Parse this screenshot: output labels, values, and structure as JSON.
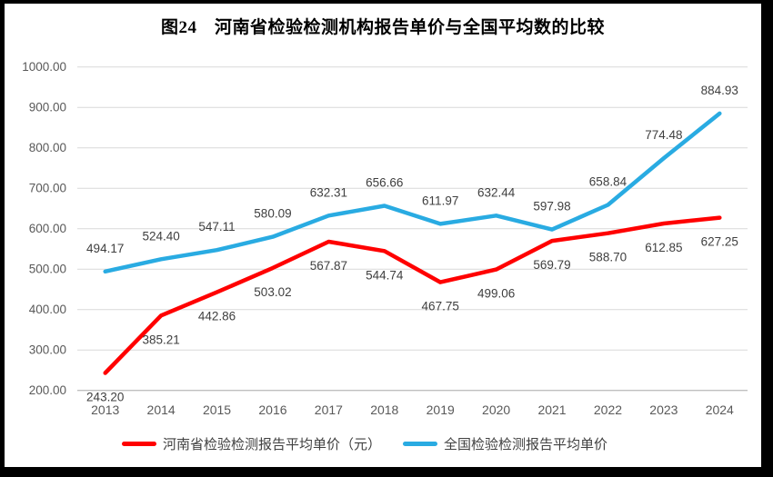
{
  "title": "图24　河南省检验检测机构报告单价与全国平均数的比较",
  "chart_data": {
    "type": "line",
    "categories": [
      "2013",
      "2014",
      "2015",
      "2016",
      "2017",
      "2018",
      "2019",
      "2020",
      "2021",
      "2022",
      "2023",
      "2024"
    ],
    "series": [
      {
        "name": "河南省检验检测报告平均单价（元）",
        "color": "#FF0000",
        "values": [
          243.2,
          385.21,
          442.86,
          503.02,
          567.87,
          544.74,
          467.75,
          499.06,
          569.79,
          588.7,
          612.85,
          627.25
        ],
        "label_position": "below"
      },
      {
        "name": "全国检验检测报告平均单价",
        "color": "#29ABE2",
        "values": [
          494.17,
          524.4,
          547.11,
          580.09,
          632.31,
          656.66,
          611.97,
          632.44,
          597.98,
          658.84,
          774.48,
          884.93
        ],
        "label_position": "above"
      }
    ],
    "ylim": [
      200,
      1000
    ],
    "yticks": [
      200,
      300,
      400,
      500,
      600,
      700,
      800,
      900,
      1000
    ],
    "ytick_decimals": 2,
    "data_label_decimals": 2,
    "grid": true,
    "legend_position": "bottom"
  },
  "colors": {
    "axis_text": "#595959",
    "data_label_text": "#3F3F3F",
    "gridline": "#D9D9D9",
    "axis_line": "#BFBFBF",
    "title_text": "#000000",
    "legend_text": "#404040",
    "frame_border": "#000000",
    "background": "#FFFFFF"
  }
}
